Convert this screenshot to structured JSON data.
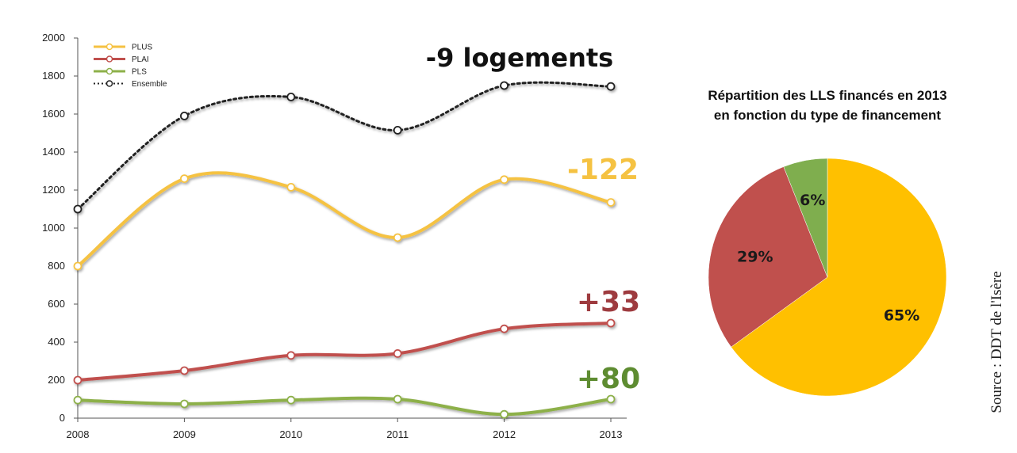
{
  "colors": {
    "plus": "#F5C242",
    "plai": "#C0504D",
    "pls": "#8DB04A",
    "ensemble": "#222222",
    "pie_plus": "#FFC000",
    "pie_plai": "#C0504D",
    "pie_pls": "#7FAE4E"
  },
  "chart_data": [
    {
      "type": "line",
      "x": [
        "2008",
        "2009",
        "2010",
        "2011",
        "2012",
        "2013"
      ],
      "ylim": [
        0,
        2000
      ],
      "yticks": [
        "0",
        "200",
        "400",
        "600",
        "800",
        "1000",
        "1200",
        "1400",
        "1600",
        "1800",
        "2000"
      ],
      "series": [
        {
          "name": "PLUS",
          "values": [
            800,
            1260,
            1215,
            950,
            1255,
            1135
          ]
        },
        {
          "name": "PLAI",
          "values": [
            200,
            250,
            330,
            340,
            470,
            500
          ]
        },
        {
          "name": "PLS",
          "values": [
            95,
            75,
            95,
            100,
            20,
            100
          ]
        },
        {
          "name": "Ensemble",
          "values": [
            1100,
            1590,
            1690,
            1515,
            1750,
            1745
          ]
        }
      ],
      "legend_position": "top-left",
      "annotations": {
        "ensemble": "-9 logements",
        "plus": "-122",
        "plai": "+33",
        "pls": "+80"
      }
    },
    {
      "type": "pie",
      "title_line1": "Répartition des LLS financés en 2013",
      "title_line2": "en fonction du type de financement",
      "slices": [
        {
          "label": "65%",
          "value": 65
        },
        {
          "label": "29%",
          "value": 29
        },
        {
          "label": "6%",
          "value": 6
        }
      ]
    }
  ],
  "source": "Source : DDT de l'Isère"
}
